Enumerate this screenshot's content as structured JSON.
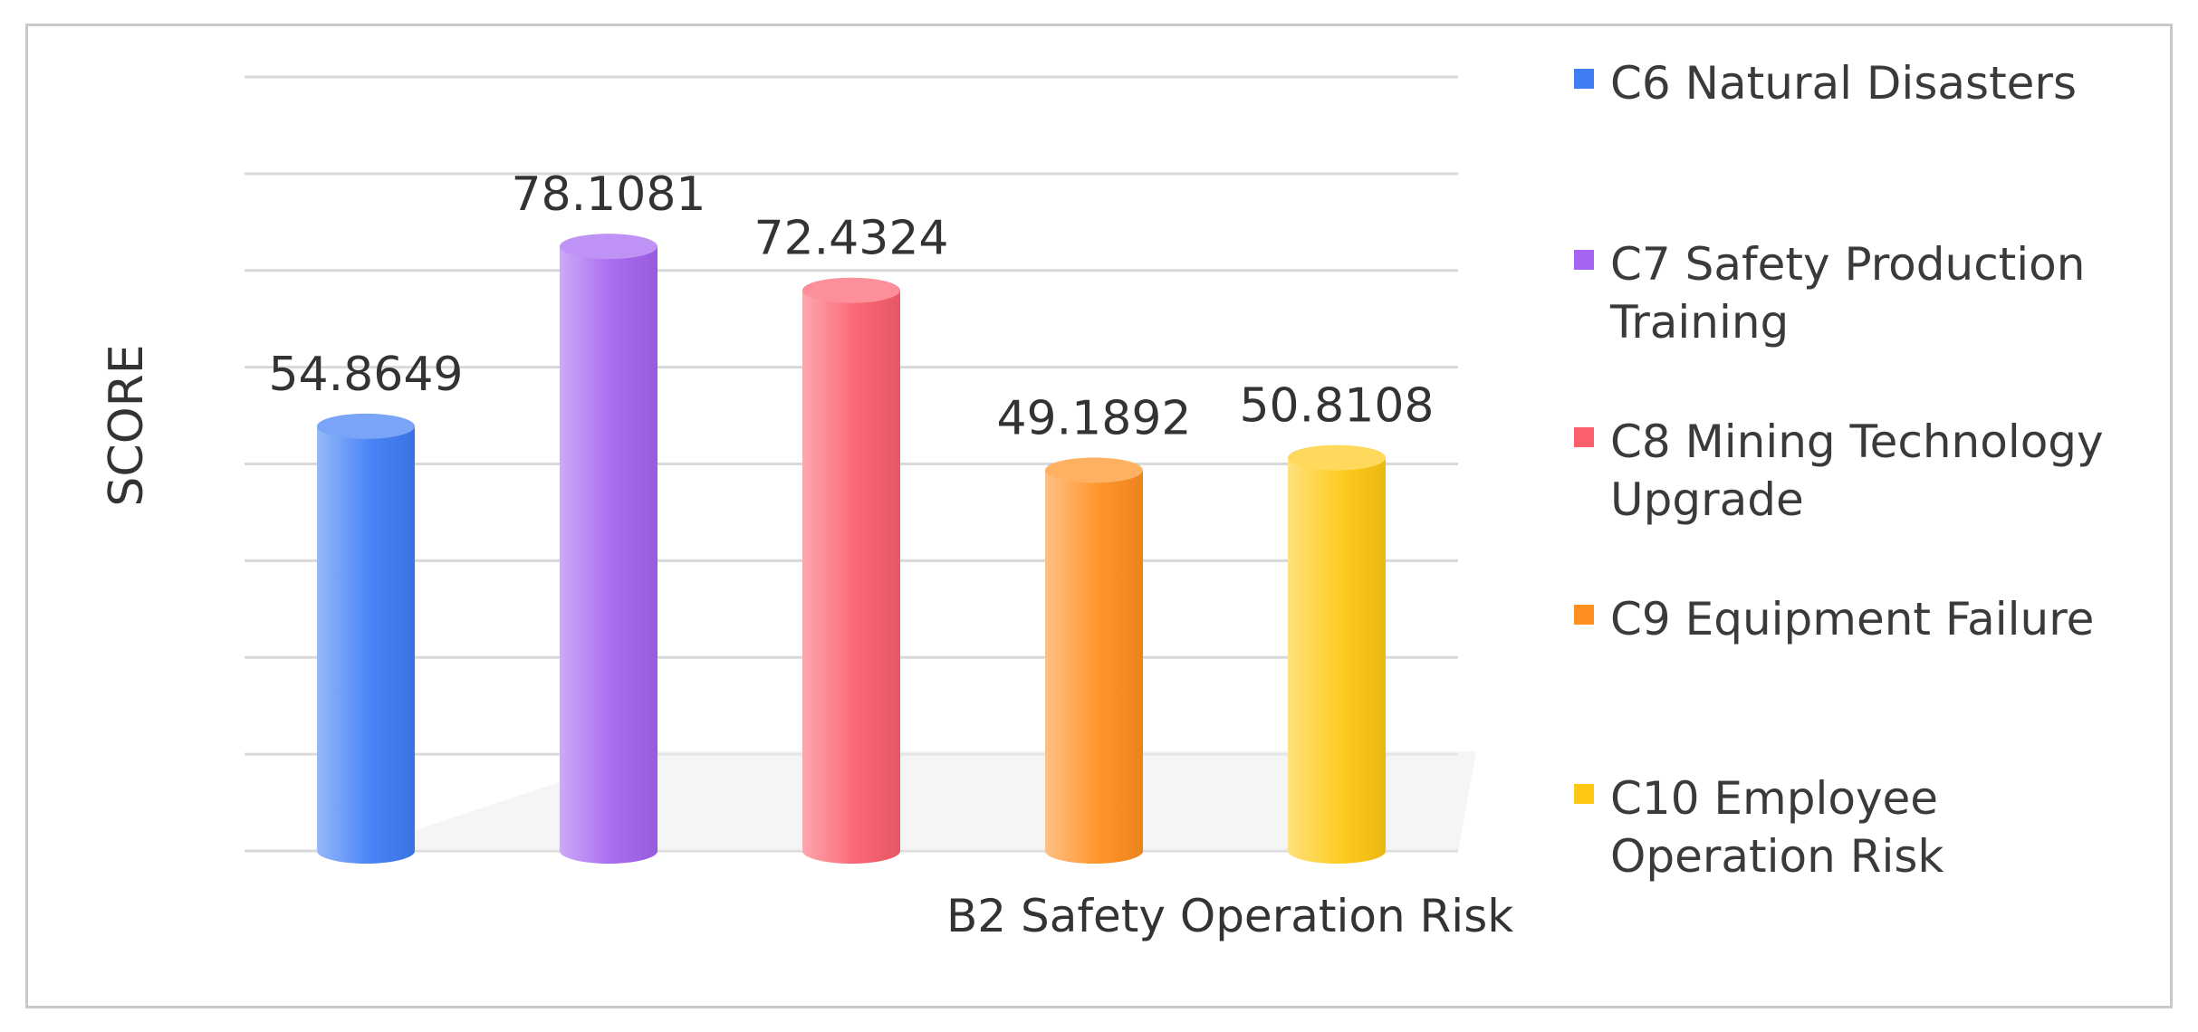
{
  "chart_data": {
    "type": "bar",
    "title": "",
    "xlabel": "B2 Safety Operation Risk",
    "ylabel": "SCORE",
    "ylim": [
      0,
      100
    ],
    "grid": true,
    "legend_position": "right",
    "categories": [
      "C6 Natural Disasters",
      "C7 Safety Production Training",
      "C8 Mining Technology Upgrade",
      "C9 Equipment Failure",
      "C10 Employee Operation Risk"
    ],
    "values": [
      54.8649,
      78.1081,
      72.4324,
      49.1892,
      50.8108
    ],
    "value_labels": [
      "54.8649",
      "78.1081",
      "72.4324",
      "49.1892",
      "50.8108"
    ],
    "colors": [
      "#3f7df5",
      "#a463f0",
      "#fb5f6e",
      "#ff8f1f",
      "#ffc814"
    ]
  }
}
